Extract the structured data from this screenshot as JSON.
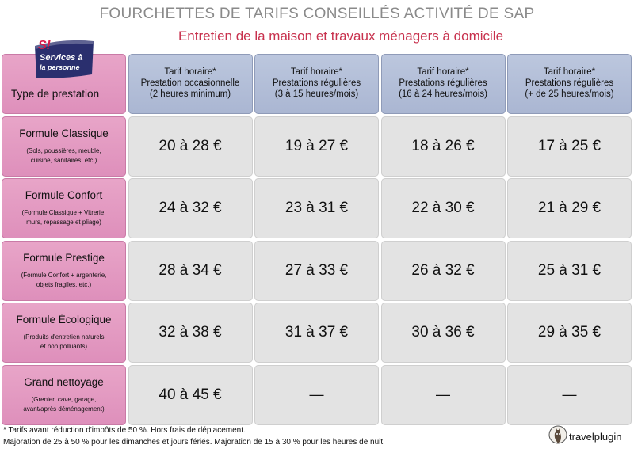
{
  "title": "FOURCHETTES DE TARIFS CONSEILLÉS ACTIVITÉ DE SAP",
  "subtitle": "Entretien de la maison et travaux ménagers à domicile",
  "logo": {
    "line1": "S!",
    "line2": "Services à",
    "line3": "la personne"
  },
  "table": {
    "corner": "Type de prestation",
    "columns": [
      {
        "l1": "Tarif horaire*",
        "l2": "Prestation occasionnelle",
        "l3": "(2 heures minimum)"
      },
      {
        "l1": "Tarif horaire*",
        "l2": "Prestations régulières",
        "l3": "(3 à 15 heures/mois)"
      },
      {
        "l1": "Tarif horaire*",
        "l2": "Prestations régulières",
        "l3": "(16 à 24 heures/mois)"
      },
      {
        "l1": "Tarif horaire*",
        "l2": "Prestations régulières",
        "l3": "(+ de 25 heures/mois)"
      }
    ],
    "rows": [
      {
        "title": "Formule Classique",
        "d1": "(Sols, poussières, meuble,",
        "d2": "cuisine, sanitaires, etc.)",
        "prices": [
          "20 à 28 €",
          "19 à 27 €",
          "18 à 26 €",
          "17 à 25 €"
        ]
      },
      {
        "title": "Formule Confort",
        "d1": "(Formule Classique + Vitrerie,",
        "d2": "murs, repassage et pliage)",
        "prices": [
          "24 à 32 €",
          "23 à 31 €",
          "22 à 30 €",
          "21 à 29 €"
        ]
      },
      {
        "title": "Formule Prestige",
        "d1": "(Formule Confort + argenterie,",
        "d2": "objets fragiles, etc.)",
        "prices": [
          "28 à 34 €",
          "27 à 33 €",
          "26 à 32 €",
          "25 à 31 €"
        ]
      },
      {
        "title": "Formule Écologique",
        "d1": "(Produits d'entretien naturels",
        "d2": "et non polluants)",
        "prices": [
          "32 à 38 €",
          "31 à 37 €",
          "30 à 36 €",
          "29 à 35 €"
        ]
      },
      {
        "title": "Grand nettoyage",
        "d1": "(Grenier, cave, garage,",
        "d2": "avant/après déménagement)",
        "prices": [
          "40 à 45 €",
          "—",
          "—",
          "—"
        ]
      }
    ]
  },
  "footnote": {
    "line1": "* Tarifs avant réduction d'impôts de 50 %. Hors frais de déplacement.",
    "line2": "Majoration de 25 à 50 % pour les dimanches et jours fériés. Majoration de 15 à 30 % pour les heures de nuit."
  },
  "brand": {
    "name": "travelplugin",
    "icon": "llama-icon"
  },
  "colors": {
    "pink": "#e29bc2",
    "blue": "#b2bdd7",
    "gray": "#e3e3e3",
    "subtitle_red": "#c8324e",
    "title_gray": "#8a8a8a",
    "logo_navy": "#2a2f6e",
    "logo_red": "#d81b4a"
  }
}
